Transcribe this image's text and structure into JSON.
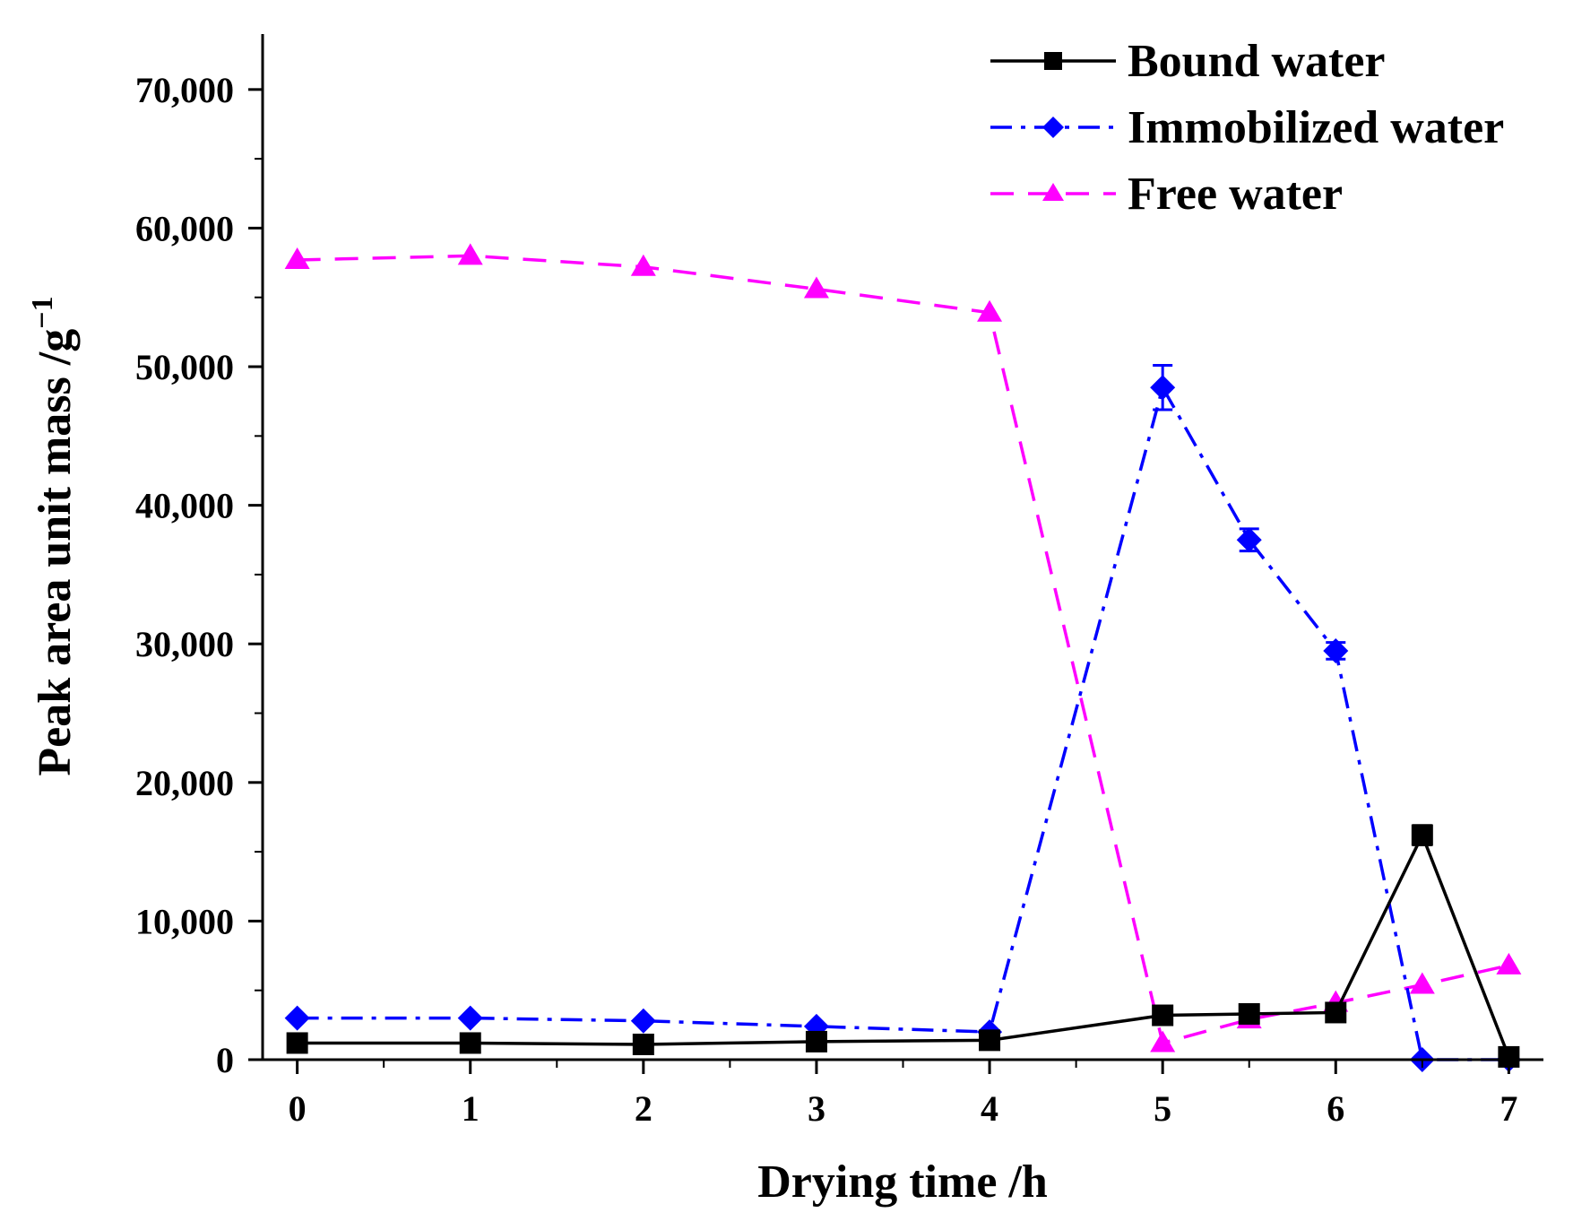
{
  "chart_data": {
    "type": "line",
    "title": "",
    "xlabel": "Drying time /h",
    "ylabel": "Peak area unit mass /g",
    "ylabel_sup": "−1",
    "xlim": [
      -0.2,
      7.2
    ],
    "ylim": [
      0,
      74000
    ],
    "x_ticks": [
      0,
      1,
      2,
      3,
      4,
      5,
      6,
      7
    ],
    "x_tick_labels": [
      "0",
      "1",
      "2",
      "3",
      "4",
      "5",
      "6",
      "7"
    ],
    "y_ticks": [
      0,
      10000,
      20000,
      30000,
      40000,
      50000,
      60000,
      70000
    ],
    "y_tick_labels": [
      "0",
      "10,000",
      "20,000",
      "30,000",
      "40,000",
      "50,000",
      "60,000",
      "70,000"
    ],
    "grid": false,
    "legend_position": "top-right",
    "x": [
      0,
      1,
      2,
      3,
      4,
      5,
      5.5,
      6,
      6.5,
      7
    ],
    "series": [
      {
        "name": "Bound water",
        "color": "#000000",
        "marker": "square",
        "line_style": "solid",
        "values": [
          1200,
          1200,
          1100,
          1300,
          1400,
          3200,
          3300,
          3400,
          16200,
          200
        ],
        "errors": [
          0,
          0,
          0,
          0,
          0,
          0,
          0,
          0,
          700,
          0
        ]
      },
      {
        "name": "Immobilized water",
        "color": "#0000ff",
        "marker": "diamond",
        "line_style": "dash-dot",
        "values": [
          3000,
          3000,
          2800,
          2400,
          2000,
          48500,
          37500,
          29500,
          0,
          0
        ],
        "errors": [
          0,
          0,
          0,
          0,
          0,
          1600,
          800,
          600,
          0,
          0
        ]
      },
      {
        "name": "Free water",
        "color": "#ff00ff",
        "marker": "triangle",
        "line_style": "dashed",
        "values": [
          57700,
          58000,
          57200,
          55600,
          53900,
          1200,
          2900,
          4100,
          5400,
          6800
        ],
        "errors": [
          0,
          0,
          0,
          0,
          0,
          0,
          0,
          0,
          0,
          0
        ]
      }
    ]
  }
}
